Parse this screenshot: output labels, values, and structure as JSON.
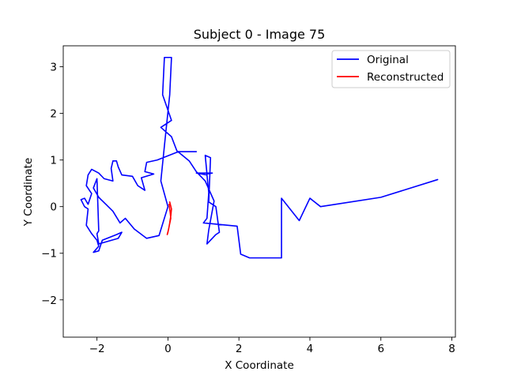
{
  "chart_data": {
    "type": "line",
    "title": "Subject 0 - Image 75",
    "xlabel": "X Coordinate",
    "ylabel": "Y Coordinate",
    "xlim": [
      -2.95,
      8.1
    ],
    "ylim": [
      -2.8,
      3.45
    ],
    "xticks": [
      -2,
      0,
      2,
      4,
      6,
      8
    ],
    "yticks": [
      -2,
      -1,
      0,
      1,
      2,
      3
    ],
    "grid": false,
    "legend_position": "top-right",
    "series": [
      {
        "name": "Original",
        "color": "#0000ff",
        "x": [
          0.8,
          0.3,
          -0.3,
          -0.6,
          -0.65,
          -0.4,
          -0.75,
          -0.65,
          -0.85,
          -1.0,
          -1.3,
          -1.4,
          -1.45,
          -1.55,
          -1.6,
          -1.55,
          -1.8,
          -1.95,
          -2.15,
          -2.25,
          -2.3,
          -2.15,
          -2.25,
          -2.35,
          -2.45,
          -2.35,
          -2.25,
          -2.3,
          -2.15,
          -2.0,
          -1.95,
          -2.1,
          -1.95,
          -1.85,
          -1.45,
          -1.3,
          -1.4,
          -1.95,
          -2.0,
          -1.95,
          -2.0,
          -2.1,
          -1.95,
          -1.75,
          -1.55,
          -1.35,
          -1.2,
          -0.95,
          -0.6,
          -0.25,
          0.0,
          -0.2,
          -0.1,
          0.05,
          0.1,
          -0.1,
          -0.15,
          0.1,
          -0.2,
          0.1,
          0.25,
          0.6,
          0.8,
          1.05,
          1.3,
          1.15,
          1.1,
          1.35,
          1.45,
          1.35,
          1.15,
          1.2,
          1.05,
          1.1,
          1.25,
          0.8,
          1.1,
          1.15,
          1.1,
          1.0,
          1.95,
          2.05,
          2.3,
          3.2,
          3.2,
          3.7,
          4.0,
          4.3,
          6.0,
          7.6
        ],
        "y": [
          1.18,
          1.18,
          1.0,
          0.95,
          0.75,
          0.7,
          0.62,
          0.35,
          0.45,
          0.65,
          0.68,
          0.85,
          0.98,
          0.98,
          0.82,
          0.55,
          0.6,
          0.72,
          0.8,
          0.68,
          0.45,
          0.28,
          0.05,
          0.18,
          0.15,
          0.0,
          -0.05,
          -0.4,
          -0.58,
          -0.72,
          -0.85,
          -0.98,
          -0.95,
          -0.72,
          -0.6,
          -0.55,
          -0.68,
          -0.8,
          -0.58,
          -0.52,
          0.6,
          0.4,
          0.2,
          0.05,
          -0.1,
          -0.35,
          -0.25,
          -0.48,
          -0.68,
          -0.62,
          0.0,
          0.55,
          1.3,
          2.4,
          3.2,
          3.2,
          2.4,
          1.85,
          1.7,
          1.5,
          1.2,
          0.98,
          0.75,
          0.55,
          0.12,
          -0.5,
          -0.8,
          -0.6,
          -0.55,
          0.0,
          0.1,
          1.05,
          1.1,
          0.7,
          0.72,
          0.72,
          0.68,
          0.3,
          -0.25,
          -0.35,
          -0.42,
          -1.02,
          -1.1,
          -1.1,
          0.18,
          -0.3,
          0.18,
          0.0,
          0.2,
          0.58
        ]
      },
      {
        "name": "Reconstructed",
        "color": "#ff0000",
        "x": [
          0.05,
          0.1,
          0.08,
          0.05,
          0.02,
          -0.02,
          0.0,
          0.04,
          0.08,
          0.06,
          0.03
        ],
        "y": [
          0.1,
          -0.05,
          -0.2,
          -0.35,
          -0.48,
          -0.6,
          -0.55,
          -0.4,
          -0.25,
          -0.1,
          0.05
        ]
      }
    ]
  }
}
